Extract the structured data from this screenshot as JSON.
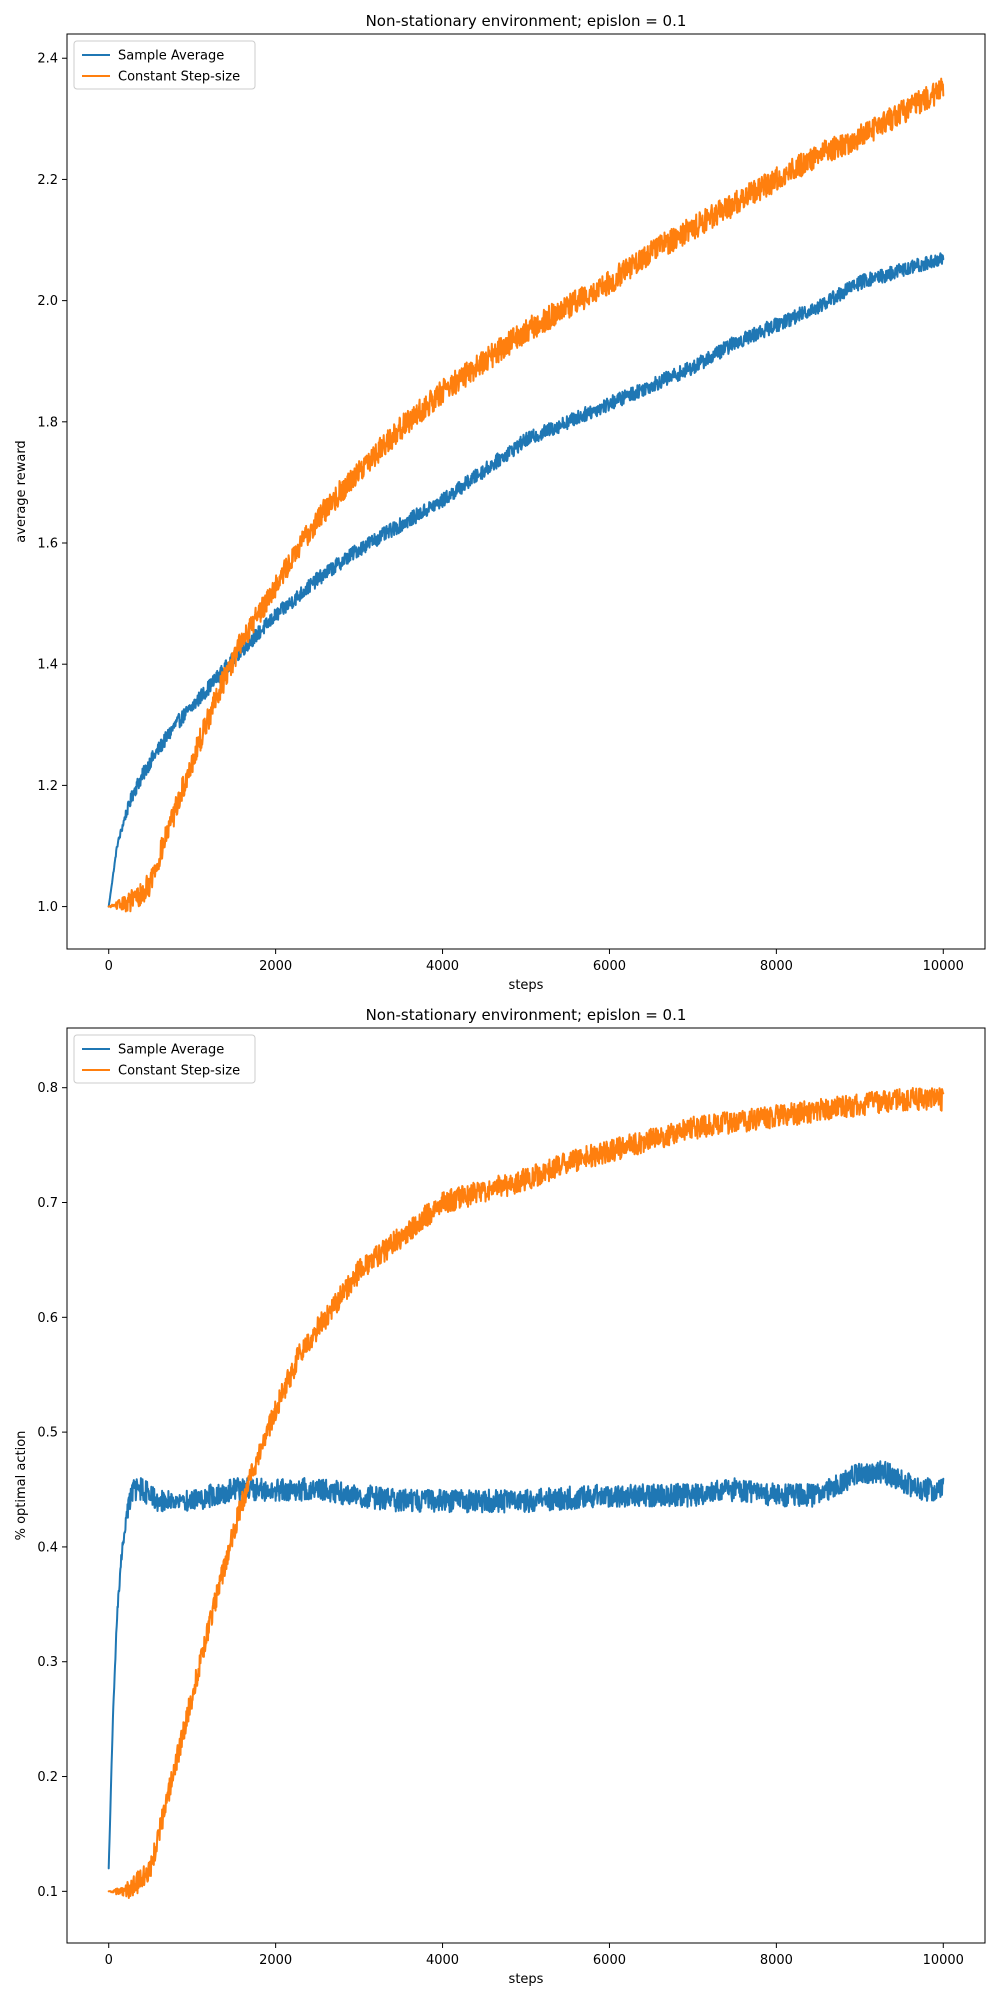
{
  "chart_data": [
    {
      "type": "line",
      "title": "Non-stationary environment; epislon = 0.1",
      "xlabel": "steps",
      "ylabel": "average reward",
      "xlim": [
        -500,
        10500
      ],
      "ylim": [
        0.93,
        2.44
      ],
      "xticks": [
        0,
        2000,
        4000,
        6000,
        8000,
        10000
      ],
      "yticks": [
        1.0,
        1.2,
        1.4,
        1.6,
        1.8,
        2.0,
        2.2,
        2.4
      ],
      "ytick_labels": [
        "1.0",
        "1.2",
        "1.4",
        "1.6",
        "1.8",
        "2.0",
        "2.2",
        "2.4"
      ],
      "grid": false,
      "legend_position": "top-left",
      "series": [
        {
          "name": "Sample Average",
          "color": "#1f77b4",
          "noise": 0.012,
          "x": [
            0,
            100,
            200,
            300,
            500,
            800,
            1000,
            1500,
            2000,
            2500,
            3000,
            3500,
            4000,
            4500,
            5000,
            5500,
            6000,
            6500,
            7000,
            7500,
            8000,
            8500,
            9000,
            9500,
            10000
          ],
          "y": [
            1.0,
            1.1,
            1.15,
            1.19,
            1.24,
            1.3,
            1.33,
            1.41,
            1.48,
            1.54,
            1.59,
            1.63,
            1.67,
            1.72,
            1.77,
            1.8,
            1.83,
            1.86,
            1.89,
            1.93,
            1.96,
            1.99,
            2.03,
            2.05,
            2.07
          ]
        },
        {
          "name": "Constant Step-size",
          "color": "#ff7f0e",
          "noise": 0.02,
          "x": [
            0,
            200,
            400,
            500,
            700,
            1000,
            1300,
            1600,
            2000,
            2500,
            3000,
            3500,
            4000,
            4500,
            5000,
            5500,
            6000,
            6500,
            7000,
            7500,
            8000,
            8500,
            9000,
            9500,
            10000
          ],
          "y": [
            1.0,
            1.005,
            1.02,
            1.04,
            1.12,
            1.24,
            1.35,
            1.44,
            1.53,
            1.64,
            1.72,
            1.79,
            1.85,
            1.9,
            1.95,
            1.99,
            2.03,
            2.08,
            2.12,
            2.16,
            2.2,
            2.24,
            2.27,
            2.31,
            2.35
          ]
        }
      ]
    },
    {
      "type": "line",
      "title": "Non-stationary environment; epislon = 0.1",
      "xlabel": "steps",
      "ylabel": "% optimal action",
      "xlim": [
        -500,
        10500
      ],
      "ylim": [
        0.055,
        0.852
      ],
      "xticks": [
        0,
        2000,
        4000,
        6000,
        8000,
        10000
      ],
      "yticks": [
        0.1,
        0.2,
        0.3,
        0.4,
        0.5,
        0.6,
        0.7,
        0.8
      ],
      "ytick_labels": [
        "0.1",
        "0.2",
        "0.3",
        "0.4",
        "0.5",
        "0.6",
        "0.7",
        "0.8"
      ],
      "grid": false,
      "legend_position": "top-left",
      "series": [
        {
          "name": "Sample Average",
          "color": "#1f77b4",
          "noise": 0.01,
          "x": [
            0,
            50,
            100,
            150,
            200,
            250,
            300,
            400,
            600,
            1000,
            1500,
            2000,
            2500,
            3000,
            3500,
            4000,
            5000,
            6000,
            7000,
            7500,
            8000,
            8500,
            9000,
            9300,
            9700,
            10000
          ],
          "y": [
            0.12,
            0.25,
            0.34,
            0.39,
            0.42,
            0.44,
            0.45,
            0.45,
            0.44,
            0.44,
            0.45,
            0.45,
            0.45,
            0.445,
            0.44,
            0.44,
            0.44,
            0.445,
            0.445,
            0.45,
            0.445,
            0.445,
            0.465,
            0.465,
            0.45,
            0.45
          ]
        },
        {
          "name": "Constant Step-size",
          "color": "#ff7f0e",
          "noise": 0.01,
          "x": [
            0,
            200,
            400,
            500,
            700,
            1000,
            1300,
            1600,
            1800,
            2000,
            2300,
            2500,
            3000,
            3500,
            4000,
            4500,
            5000,
            5500,
            6000,
            6500,
            7000,
            7500,
            8000,
            8500,
            9000,
            9500,
            10000
          ],
          "y": [
            0.1,
            0.1,
            0.11,
            0.12,
            0.18,
            0.27,
            0.36,
            0.44,
            0.48,
            0.52,
            0.57,
            0.59,
            0.64,
            0.67,
            0.7,
            0.71,
            0.72,
            0.735,
            0.745,
            0.755,
            0.765,
            0.77,
            0.775,
            0.78,
            0.785,
            0.79,
            0.79
          ]
        }
      ]
    }
  ]
}
